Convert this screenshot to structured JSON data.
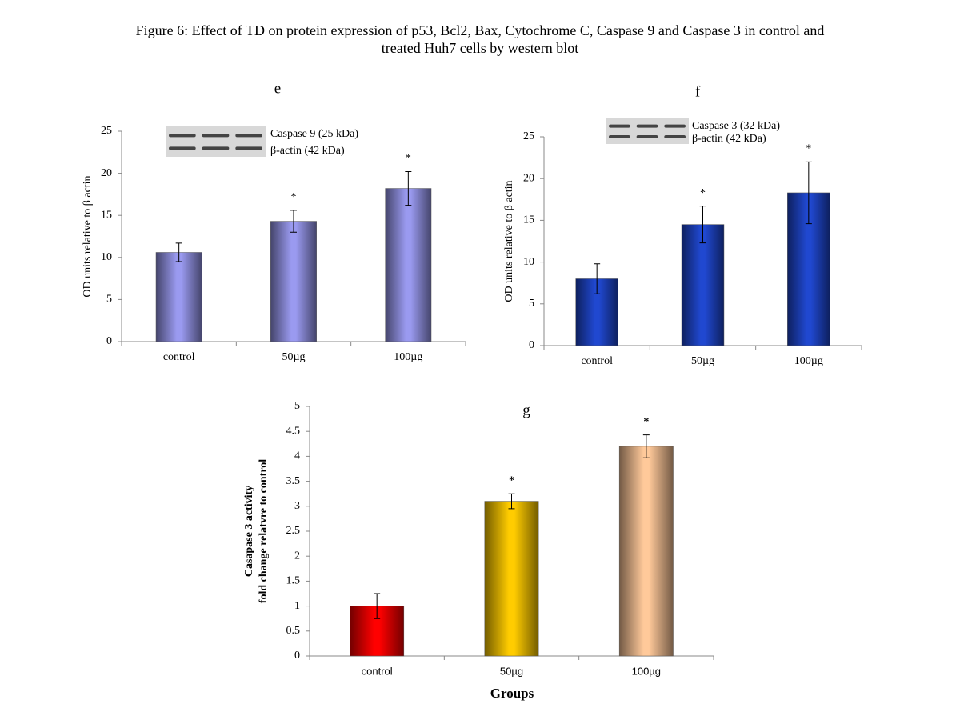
{
  "figure_title": [
    "Figure 6: Effect of TD on protein expression of p53, Bcl2, Bax, Cytochrome C, Caspase 9 and  Caspase 3 in control and",
    "treated Huh7 cells by western blot"
  ],
  "chart_data": [
    {
      "type": "bar",
      "title": "e",
      "y_label": [
        "OD units relative to β actin"
      ],
      "blot_labels": [
        "Caspase 9 (25 kDa)",
        "β-actin  (42 kDa)"
      ],
      "categories": [
        "control",
        "50µg",
        "100µg"
      ],
      "values": [
        10.6,
        14.3,
        18.2
      ],
      "errors": [
        1.1,
        1.3,
        2.0
      ],
      "significance": [
        null,
        "*",
        "*"
      ],
      "colors": [
        "#9a9af0",
        "#9a9af0",
        "#9a9af0"
      ],
      "ylim": [
        0,
        25
      ],
      "yticks": [
        0,
        5,
        10,
        15,
        20,
        25
      ]
    },
    {
      "type": "bar",
      "title": "f",
      "y_label": [
        "OD units relative to β actin"
      ],
      "blot_labels": [
        "Caspase 3 (32 kDa)",
        "β-actin  (42 kDa)"
      ],
      "categories": [
        "control",
        "50µg",
        "100µg"
      ],
      "values": [
        8.0,
        14.5,
        18.3
      ],
      "errors": [
        1.8,
        2.2,
        3.7
      ],
      "significance": [
        null,
        "*",
        "*"
      ],
      "colors": [
        "#2048d0",
        "#2048d0",
        "#2048d0"
      ],
      "ylim": [
        0,
        25
      ],
      "yticks": [
        0,
        5,
        10,
        15,
        20,
        25
      ]
    },
    {
      "type": "bar",
      "title": "g",
      "y_label": [
        "Casapase 3 activity",
        "fold change relatvre to control"
      ],
      "x_label": "Groups",
      "categories": [
        "control",
        "50µg",
        "100µg"
      ],
      "values": [
        1.0,
        3.1,
        4.2
      ],
      "errors": [
        0.25,
        0.15,
        0.23
      ],
      "significance": [
        null,
        "*",
        "*"
      ],
      "colors": [
        "#ff0000",
        "#ffcc00",
        "#ffc99a"
      ],
      "ylim": [
        0,
        5
      ],
      "yticks": [
        0,
        0.5,
        1,
        1.5,
        2,
        2.5,
        3,
        3.5,
        4,
        4.5,
        5
      ]
    }
  ]
}
